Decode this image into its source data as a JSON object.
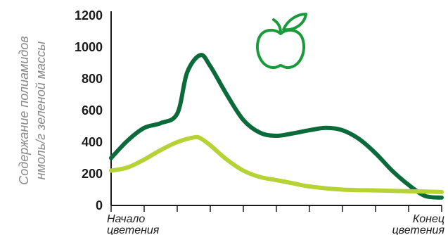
{
  "chart_data": {
    "type": "line",
    "title": "",
    "ylabel_lines": [
      "Содержание полиамидов",
      "нмоль/г зеленой массы"
    ],
    "xlabel": "",
    "ylim": [
      0,
      1200
    ],
    "yticks": [
      0,
      200,
      400,
      600,
      800,
      1000,
      1200
    ],
    "xlim": [
      0,
      1
    ],
    "x_tick_count": 10,
    "x_labels": [
      {
        "x": 0,
        "lines": [
          "Начало",
          "цветения"
        ]
      },
      {
        "x": 1,
        "lines": [
          "Конец",
          "цветения"
        ]
      }
    ],
    "grid": false,
    "legend": "none",
    "series": [
      {
        "color": "#0b6a3a",
        "x": [
          0,
          0.05,
          0.1,
          0.15,
          0.2,
          0.23,
          0.27,
          0.3,
          0.35,
          0.4,
          0.45,
          0.5,
          0.55,
          0.6,
          0.65,
          0.7,
          0.75,
          0.8,
          0.85,
          0.9,
          0.95,
          1.0
        ],
        "values": [
          300,
          410,
          490,
          520,
          580,
          840,
          950,
          880,
          700,
          540,
          460,
          440,
          455,
          475,
          490,
          475,
          420,
          330,
          220,
          130,
          60,
          50
        ]
      },
      {
        "color": "#b5d334",
        "x": [
          0,
          0.05,
          0.1,
          0.15,
          0.2,
          0.25,
          0.27,
          0.3,
          0.35,
          0.4,
          0.45,
          0.5,
          0.55,
          0.6,
          0.7,
          0.8,
          0.9,
          1.0
        ],
        "values": [
          220,
          240,
          290,
          350,
          400,
          430,
          425,
          380,
          290,
          220,
          180,
          160,
          140,
          120,
          100,
          95,
          90,
          85
        ]
      }
    ]
  },
  "icon": {
    "name": "apple-icon",
    "color": "#1a9a3a"
  }
}
